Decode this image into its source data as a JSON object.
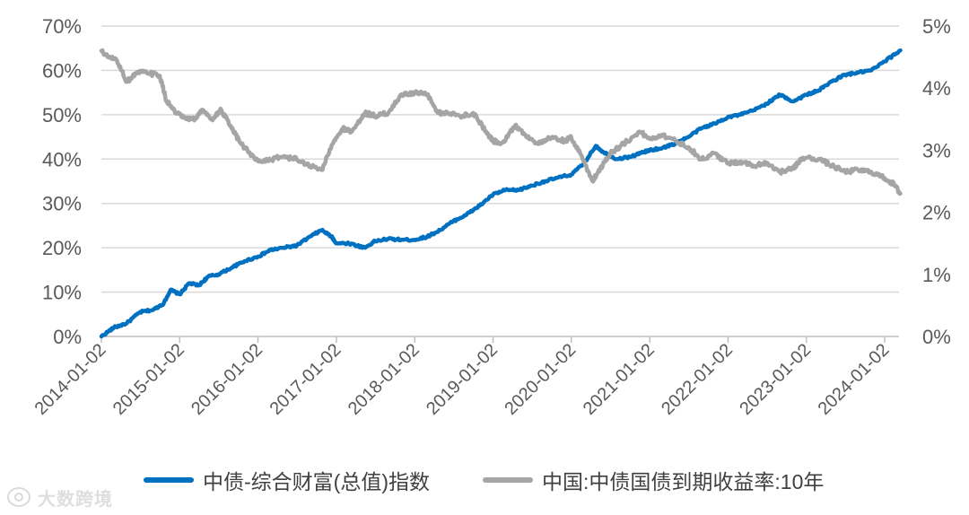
{
  "chart_data": {
    "type": "line",
    "x_start": "2014-01-02",
    "x_end": "2024-03-15",
    "x_ticks": [
      "2014-01-02",
      "2015-01-02",
      "2016-01-02",
      "2017-01-02",
      "2018-01-02",
      "2019-01-02",
      "2020-01-02",
      "2021-01-02",
      "2022-01-02",
      "2023-01-02",
      "2024-01-02"
    ],
    "y_left": {
      "ticks": [
        "0%",
        "10%",
        "20%",
        "30%",
        "40%",
        "50%",
        "60%",
        "70%"
      ],
      "range": [
        0,
        70
      ]
    },
    "y_right": {
      "ticks": [
        "0%",
        "1%",
        "2%",
        "3%",
        "4%",
        "5%"
      ],
      "range": [
        0,
        5
      ]
    },
    "grid": true,
    "legend_position": "bottom",
    "series": [
      {
        "name": "中债-综合财富(总值)指数",
        "axis": "left",
        "color": "#0070C0",
        "points": [
          [
            "2014-01-02",
            0.0
          ],
          [
            "2014-03-01",
            2.0
          ],
          [
            "2014-05-01",
            3.0
          ],
          [
            "2014-07-01",
            5.5
          ],
          [
            "2014-09-01",
            6.0
          ],
          [
            "2014-10-20",
            7.5
          ],
          [
            "2014-11-20",
            10.5
          ],
          [
            "2015-01-02",
            9.5
          ],
          [
            "2015-02-15",
            12.0
          ],
          [
            "2015-04-01",
            11.5
          ],
          [
            "2015-05-15",
            13.5
          ],
          [
            "2015-07-01",
            14.0
          ],
          [
            "2015-09-01",
            15.5
          ],
          [
            "2015-11-01",
            17.0
          ],
          [
            "2016-01-02",
            18.0
          ],
          [
            "2016-03-01",
            19.5
          ],
          [
            "2016-05-01",
            20.0
          ],
          [
            "2016-07-01",
            20.5
          ],
          [
            "2016-09-01",
            22.5
          ],
          [
            "2016-10-25",
            24.0
          ],
          [
            "2016-12-10",
            22.5
          ],
          [
            "2017-01-02",
            21.0
          ],
          [
            "2017-03-01",
            21.0
          ],
          [
            "2017-05-15",
            20.0
          ],
          [
            "2017-07-01",
            21.5
          ],
          [
            "2017-09-01",
            22.0
          ],
          [
            "2017-11-01",
            21.8
          ],
          [
            "2018-01-02",
            21.8
          ],
          [
            "2018-03-01",
            22.5
          ],
          [
            "2018-05-01",
            24.0
          ],
          [
            "2018-07-01",
            26.0
          ],
          [
            "2018-09-01",
            27.5
          ],
          [
            "2018-11-01",
            29.5
          ],
          [
            "2019-01-02",
            32.0
          ],
          [
            "2019-03-01",
            33.0
          ],
          [
            "2019-05-01",
            33.0
          ],
          [
            "2019-07-01",
            34.0
          ],
          [
            "2019-09-01",
            35.0
          ],
          [
            "2019-11-01",
            35.8
          ],
          [
            "2020-01-02",
            36.5
          ],
          [
            "2020-03-01",
            39.0
          ],
          [
            "2020-04-25",
            43.0
          ],
          [
            "2020-06-01",
            41.5
          ],
          [
            "2020-08-01",
            40.0
          ],
          [
            "2020-10-01",
            40.5
          ],
          [
            "2020-12-01",
            41.5
          ],
          [
            "2021-01-02",
            42.0
          ],
          [
            "2021-03-01",
            42.5
          ],
          [
            "2021-05-01",
            43.5
          ],
          [
            "2021-07-01",
            45.0
          ],
          [
            "2021-09-01",
            47.0
          ],
          [
            "2021-11-01",
            48.0
          ],
          [
            "2022-01-02",
            49.5
          ],
          [
            "2022-03-01",
            50.0
          ],
          [
            "2022-05-01",
            51.0
          ],
          [
            "2022-07-01",
            52.5
          ],
          [
            "2022-09-01",
            54.5
          ],
          [
            "2022-11-01",
            53.0
          ],
          [
            "2023-01-02",
            54.5
          ],
          [
            "2023-03-01",
            55.5
          ],
          [
            "2023-05-01",
            57.5
          ],
          [
            "2023-07-01",
            59.0
          ],
          [
            "2023-09-01",
            59.5
          ],
          [
            "2023-11-01",
            60.0
          ],
          [
            "2024-01-02",
            62.0
          ],
          [
            "2024-03-15",
            64.5
          ]
        ]
      },
      {
        "name": "中国:中债国债到期收益率:10年",
        "axis": "right",
        "color": "#A5A5A5",
        "points": [
          [
            "2014-01-02",
            4.6
          ],
          [
            "2014-02-01",
            4.5
          ],
          [
            "2014-03-15",
            4.45
          ],
          [
            "2014-05-01",
            4.1
          ],
          [
            "2014-06-15",
            4.25
          ],
          [
            "2014-08-01",
            4.25
          ],
          [
            "2014-10-01",
            4.2
          ],
          [
            "2014-11-01",
            3.8
          ],
          [
            "2014-12-15",
            3.6
          ],
          [
            "2015-02-01",
            3.5
          ],
          [
            "2015-03-15",
            3.5
          ],
          [
            "2015-04-15",
            3.65
          ],
          [
            "2015-06-01",
            3.5
          ],
          [
            "2015-07-15",
            3.65
          ],
          [
            "2015-09-01",
            3.35
          ],
          [
            "2015-10-15",
            3.1
          ],
          [
            "2016-01-02",
            2.82
          ],
          [
            "2016-03-01",
            2.85
          ],
          [
            "2016-05-01",
            2.9
          ],
          [
            "2016-07-01",
            2.85
          ],
          [
            "2016-09-01",
            2.75
          ],
          [
            "2016-10-25",
            2.68
          ],
          [
            "2016-12-15",
            3.1
          ],
          [
            "2017-02-01",
            3.35
          ],
          [
            "2017-03-15",
            3.3
          ],
          [
            "2017-05-15",
            3.6
          ],
          [
            "2017-07-01",
            3.55
          ],
          [
            "2017-09-01",
            3.6
          ],
          [
            "2017-11-01",
            3.9
          ],
          [
            "2018-01-02",
            3.92
          ],
          [
            "2018-03-01",
            3.9
          ],
          [
            "2018-04-20",
            3.6
          ],
          [
            "2018-06-01",
            3.6
          ],
          [
            "2018-08-01",
            3.55
          ],
          [
            "2018-10-01",
            3.6
          ],
          [
            "2018-12-01",
            3.3
          ],
          [
            "2019-01-02",
            3.15
          ],
          [
            "2019-02-15",
            3.12
          ],
          [
            "2019-04-15",
            3.4
          ],
          [
            "2019-06-01",
            3.25
          ],
          [
            "2019-08-01",
            3.1
          ],
          [
            "2019-10-01",
            3.2
          ],
          [
            "2019-12-01",
            3.15
          ],
          [
            "2020-01-02",
            3.2
          ],
          [
            "2020-02-20",
            2.9
          ],
          [
            "2020-04-10",
            2.5
          ],
          [
            "2020-05-15",
            2.7
          ],
          [
            "2020-07-01",
            2.95
          ],
          [
            "2020-09-01",
            3.1
          ],
          [
            "2020-11-15",
            3.3
          ],
          [
            "2021-01-02",
            3.18
          ],
          [
            "2021-03-01",
            3.25
          ],
          [
            "2021-05-01",
            3.15
          ],
          [
            "2021-07-01",
            3.05
          ],
          [
            "2021-09-01",
            2.85
          ],
          [
            "2021-11-01",
            2.95
          ],
          [
            "2022-01-02",
            2.78
          ],
          [
            "2022-03-01",
            2.82
          ],
          [
            "2022-05-01",
            2.75
          ],
          [
            "2022-07-01",
            2.8
          ],
          [
            "2022-09-01",
            2.65
          ],
          [
            "2022-11-01",
            2.7
          ],
          [
            "2022-12-15",
            2.88
          ],
          [
            "2023-03-01",
            2.86
          ],
          [
            "2023-05-01",
            2.75
          ],
          [
            "2023-07-01",
            2.65
          ],
          [
            "2023-09-01",
            2.68
          ],
          [
            "2023-11-01",
            2.65
          ],
          [
            "2024-01-02",
            2.55
          ],
          [
            "2024-02-15",
            2.45
          ],
          [
            "2024-03-15",
            2.3
          ]
        ]
      }
    ]
  },
  "legend": {
    "series1": "中债-综合财富(总值)指数",
    "series2": "中国:中债国债到期收益率:10年"
  },
  "watermark": {
    "text": "大数跨境"
  }
}
